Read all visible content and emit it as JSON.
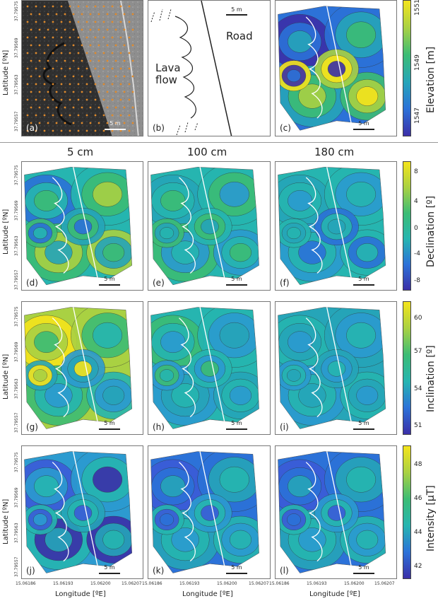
{
  "axes": {
    "latitude_label": "Latitude [ºN]",
    "longitude_label": "Longitude [ºE]",
    "lat_ticks": [
      "37.79575",
      "37.79569",
      "37.79563",
      "37.79557"
    ],
    "lon_ticks": [
      "15.06186",
      "15.06193",
      "15.06200",
      "15.06207"
    ]
  },
  "scale_bar": "5 m",
  "sketch": {
    "lava_label": "Lava\nflow",
    "road_label": "Road"
  },
  "columns": [
    "5 cm",
    "100 cm",
    "180 cm"
  ],
  "panels": {
    "a": "(a)",
    "b": "(b)",
    "c": "(c)",
    "d": "(d)",
    "e": "(e)",
    "f": "(f)",
    "g": "(g)",
    "h": "(h)",
    "i": "(i)",
    "j": "(j)",
    "k": "(k)",
    "l": "(l)"
  },
  "colorbars": {
    "elevation": {
      "label": "Elevation [m]",
      "ticks": [
        "1551",
        "1549",
        "1547"
      ]
    },
    "declination": {
      "label": "Declination [º]",
      "ticks": [
        "8",
        "4",
        "0",
        "-4",
        "-8"
      ]
    },
    "inclination": {
      "label": "Inclination [º]",
      "ticks": [
        "60",
        "57",
        "54",
        "51"
      ]
    },
    "intensity": {
      "label": "Intensity [μT]",
      "ticks": [
        "48",
        "46",
        "44",
        "42"
      ]
    }
  },
  "colors": {
    "low": "#3b2fa8",
    "mid": "#26b5b0",
    "high": "#f4e41c"
  }
}
